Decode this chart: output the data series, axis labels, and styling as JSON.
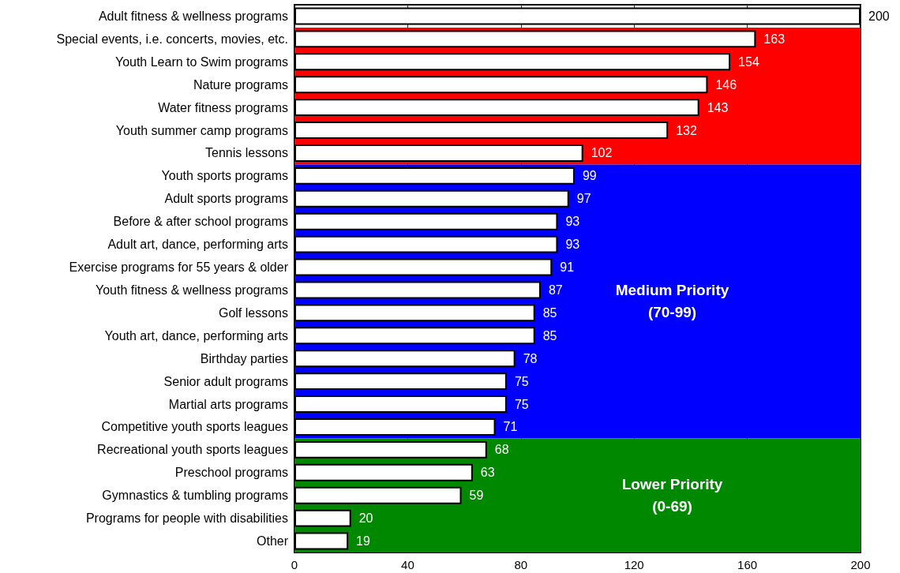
{
  "chart_data": {
    "type": "bar",
    "orientation": "horizontal",
    "categories": [
      "Adult fitness & wellness programs",
      "Special events, i.e. concerts, movies, etc.",
      "Youth Learn to Swim programs",
      "Nature programs",
      "Water fitness programs",
      "Youth summer camp programs",
      "Tennis lessons",
      "Youth sports programs",
      "Adult sports programs",
      "Before & after school programs",
      "Adult art, dance, performing arts",
      "Exercise programs for 55 years & older",
      "Youth fitness & wellness programs",
      "Golf lessons",
      "Youth art, dance, performing arts",
      "Birthday parties",
      "Senior adult programs",
      "Martial arts programs",
      "Competitive youth sports leagues",
      "Recreational youth sports leagues",
      "Preschool programs",
      "Gymnastics & tumbling programs",
      "Programs for people with disabilities",
      "Other"
    ],
    "values": [
      200,
      163,
      154,
      146,
      143,
      132,
      102,
      99,
      97,
      93,
      93,
      91,
      87,
      85,
      85,
      78,
      75,
      75,
      71,
      68,
      63,
      59,
      20,
      19
    ],
    "color": "#ffffff",
    "data_labels": true,
    "xlim": [
      0,
      200
    ],
    "xticks": [
      0,
      40,
      80,
      120,
      160,
      200
    ],
    "grid": "x",
    "bands": [
      {
        "axis": "y",
        "from": "Special events, i.e. concerts, movies, etc.",
        "to": "Tennis lessons",
        "color": "#ff0000"
      },
      {
        "axis": "y",
        "from": "Youth sports programs",
        "to": "Competitive youth sports leagues",
        "color": "#0000ff",
        "label": "Medium Priority\n(70-99)"
      },
      {
        "axis": "y",
        "from": "Recreational youth sports leagues",
        "to": "Other",
        "color": "#008800",
        "label": "Lower Priority\n(0-69)"
      }
    ]
  }
}
